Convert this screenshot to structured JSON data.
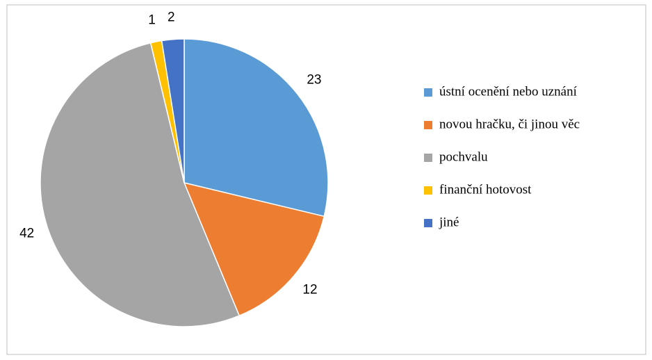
{
  "chart_data": {
    "type": "pie",
    "categories": [
      "ústní ocenění nebo uznání",
      "novou hračku, či jinou věc",
      "pochvalu",
      "finanční hotovost",
      "jiné"
    ],
    "values": [
      23,
      12,
      42,
      1,
      2
    ],
    "colors": [
      "#5b9bd5",
      "#ed7d31",
      "#a5a5a5",
      "#ffc000",
      "#4472c4"
    ],
    "legend": "right"
  }
}
